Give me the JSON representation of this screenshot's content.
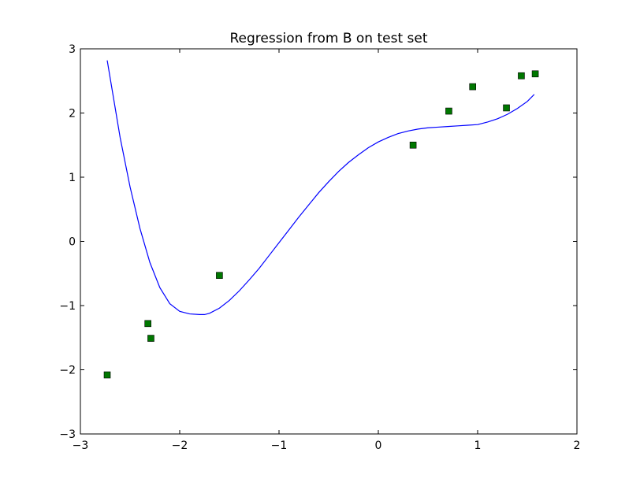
{
  "chart_data": {
    "type": "scatter",
    "title": "Regression from B on test set",
    "xlabel": "",
    "ylabel": "",
    "xlim": [
      -3,
      2
    ],
    "ylim": [
      -3,
      3
    ],
    "xticks": [
      -3,
      -2,
      -1,
      0,
      1,
      2
    ],
    "yticks": [
      -3,
      -2,
      -1,
      0,
      1,
      2,
      3
    ],
    "xtick_labels": [
      "−3",
      "−2",
      "−1",
      "0",
      "1",
      "2"
    ],
    "ytick_labels": [
      "−3",
      "−2",
      "−1",
      "0",
      "1",
      "2",
      "3"
    ],
    "grid": false,
    "series": [
      {
        "kind": "line",
        "color": "#0000ff",
        "x": [
          -2.73,
          -2.6,
          -2.5,
          -2.4,
          -2.3,
          -2.2,
          -2.1,
          -2.0,
          -1.9,
          -1.8,
          -1.75,
          -1.7,
          -1.6,
          -1.5,
          -1.4,
          -1.3,
          -1.2,
          -1.1,
          -1.0,
          -0.9,
          -0.8,
          -0.7,
          -0.6,
          -0.5,
          -0.4,
          -0.3,
          -0.2,
          -0.1,
          0.0,
          0.1,
          0.2,
          0.3,
          0.4,
          0.5,
          0.6,
          0.7,
          0.8,
          0.9,
          1.0,
          1.1,
          1.2,
          1.3,
          1.4,
          1.5,
          1.57
        ],
        "y": [
          2.82,
          1.62,
          0.85,
          0.2,
          -0.33,
          -0.72,
          -0.97,
          -1.09,
          -1.13,
          -1.14,
          -1.14,
          -1.12,
          -1.04,
          -0.92,
          -0.77,
          -0.6,
          -0.42,
          -0.22,
          -0.02,
          0.18,
          0.38,
          0.57,
          0.76,
          0.93,
          1.09,
          1.23,
          1.35,
          1.46,
          1.55,
          1.62,
          1.68,
          1.72,
          1.75,
          1.77,
          1.78,
          1.79,
          1.8,
          1.81,
          1.82,
          1.86,
          1.91,
          1.98,
          2.07,
          2.18,
          2.29
        ]
      },
      {
        "kind": "scatter",
        "marker": "square",
        "color": "#007700",
        "x": [
          -2.73,
          -2.32,
          -2.29,
          -1.6,
          0.35,
          0.71,
          0.95,
          1.29,
          1.44,
          1.58
        ],
        "y": [
          -2.08,
          -1.28,
          -1.51,
          -0.53,
          1.5,
          2.03,
          2.41,
          2.08,
          2.58,
          2.61
        ]
      }
    ]
  }
}
